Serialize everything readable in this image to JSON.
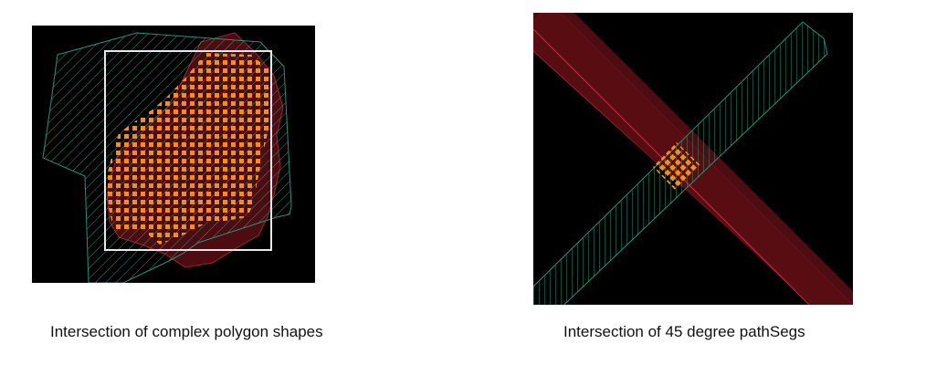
{
  "panels": [
    {
      "caption": "Intersection of complex polygon shapes"
    },
    {
      "caption": "Intersection of 45 degree pathSegs"
    }
  ],
  "colors": {
    "background": "#000000",
    "red_shape": "#5a0e14",
    "red_edge": "#9c2430",
    "green_hatch": "#2c8e7e",
    "white_box": "#e8e8e8",
    "intersection_fill": "#ff8c1a",
    "caption_text": "#111111"
  },
  "icons": {
    "intersection_marker": "orange-square-dot"
  }
}
